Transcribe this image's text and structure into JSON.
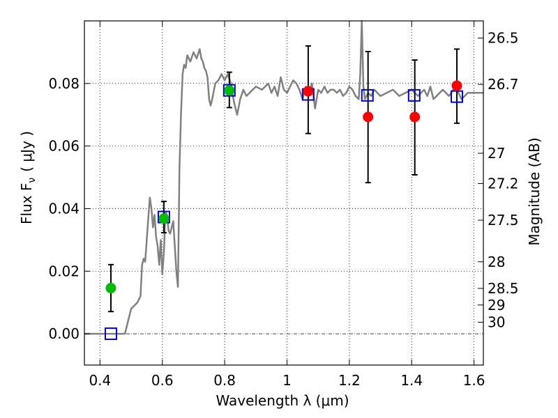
{
  "chart_data": {
    "type": "scatter",
    "title": "",
    "xlabel": "Wavelength  λ (μm)",
    "ylabel_left": "Flux  F",
    "ylabel_left_sub": "ν",
    "ylabel_left_unit": "( μJy )",
    "ylabel_right": "Magnitude (AB)",
    "xlim": [
      0.35,
      1.63
    ],
    "ylim": [
      -0.01,
      0.1
    ],
    "grid": true,
    "x_ticks": [
      {
        "value": 0.4,
        "label": "0.4"
      },
      {
        "value": 0.6,
        "label": "0.6"
      },
      {
        "value": 0.8,
        "label": "0.8"
      },
      {
        "value": 1.0,
        "label": "1"
      },
      {
        "value": 1.2,
        "label": "1.2"
      },
      {
        "value": 1.4,
        "label": "1.4"
      },
      {
        "value": 1.6,
        "label": "1.6"
      }
    ],
    "y_ticks": [
      {
        "value": 0.0,
        "label": "0.00"
      },
      {
        "value": 0.02,
        "label": "0.02"
      },
      {
        "value": 0.04,
        "label": "0.04"
      },
      {
        "value": 0.06,
        "label": "0.06"
      },
      {
        "value": 0.08,
        "label": "0.08"
      }
    ],
    "magnitude_ticks": [
      {
        "value": 0.0945,
        "label": "26.5"
      },
      {
        "value": 0.0797,
        "label": "26.7"
      },
      {
        "value": 0.0577,
        "label": "27"
      },
      {
        "value": 0.048,
        "label": "27.2"
      },
      {
        "value": 0.0363,
        "label": "27.5"
      },
      {
        "value": 0.023,
        "label": "28"
      },
      {
        "value": 0.0145,
        "label": "28.5"
      },
      {
        "value": 0.0092,
        "label": "29"
      },
      {
        "value": 0.0037,
        "label": "30"
      }
    ],
    "colors": {
      "spectrum": "#808080",
      "green_points": "#00bb00",
      "red_points": "#ff0000",
      "model_squares": "#0000cc",
      "error_bars": "#000000",
      "grid": "#000000"
    },
    "series": [
      {
        "name": "model spectrum",
        "kind": "line",
        "x": [
          0.35,
          0.48,
          0.5,
          0.52,
          0.53,
          0.535,
          0.54,
          0.545,
          0.55,
          0.555,
          0.56,
          0.565,
          0.57,
          0.575,
          0.58,
          0.585,
          0.59,
          0.595,
          0.6,
          0.605,
          0.61,
          0.615,
          0.62,
          0.625,
          0.63,
          0.635,
          0.64,
          0.645,
          0.65,
          0.655,
          0.66,
          0.665,
          0.67,
          0.675,
          0.68,
          0.69,
          0.7,
          0.71,
          0.72,
          0.725,
          0.73,
          0.735,
          0.74,
          0.745,
          0.75,
          0.755,
          0.76,
          0.77,
          0.78,
          0.79,
          0.8,
          0.81,
          0.82,
          0.83,
          0.84,
          0.85,
          0.86,
          0.87,
          0.88,
          0.9,
          0.92,
          0.94,
          0.95,
          0.96,
          0.97,
          0.98,
          0.99,
          1.0,
          1.01,
          1.02,
          1.03,
          1.04,
          1.05,
          1.06,
          1.07,
          1.08,
          1.09,
          1.1,
          1.11,
          1.12,
          1.13,
          1.14,
          1.15,
          1.16,
          1.17,
          1.18,
          1.19,
          1.2,
          1.21,
          1.22,
          1.23,
          1.235,
          1.24,
          1.245,
          1.25,
          1.26,
          1.27,
          1.28,
          1.3,
          1.32,
          1.34,
          1.36,
          1.38,
          1.4,
          1.42,
          1.44,
          1.45,
          1.46,
          1.47,
          1.48,
          1.49,
          1.5,
          1.52,
          1.54,
          1.56,
          1.58,
          1.6,
          1.63
        ],
        "y": [
          0.0,
          0.0,
          0.008,
          0.01,
          0.012,
          0.022,
          0.024,
          0.023,
          0.03,
          0.037,
          0.0435,
          0.04,
          0.034,
          0.038,
          0.031,
          0.028,
          0.022,
          0.03,
          0.019,
          0.026,
          0.039,
          0.038,
          0.033,
          0.032,
          0.034,
          0.036,
          0.028,
          0.02,
          0.015,
          0.053,
          0.07,
          0.083,
          0.086,
          0.085,
          0.089,
          0.087,
          0.09,
          0.088,
          0.091,
          0.088,
          0.087,
          0.085,
          0.084,
          0.082,
          0.075,
          0.073,
          0.075,
          0.08,
          0.081,
          0.083,
          0.081,
          0.083,
          0.08,
          0.074,
          0.07,
          0.075,
          0.078,
          0.076,
          0.077,
          0.079,
          0.078,
          0.08,
          0.077,
          0.079,
          0.076,
          0.082,
          0.078,
          0.077,
          0.079,
          0.081,
          0.08,
          0.078,
          0.075,
          0.079,
          0.077,
          0.08,
          0.072,
          0.078,
          0.077,
          0.079,
          0.077,
          0.078,
          0.078,
          0.077,
          0.078,
          0.076,
          0.077,
          0.079,
          0.078,
          0.076,
          0.075,
          0.083,
          0.104,
          0.079,
          0.075,
          0.077,
          0.076,
          0.078,
          0.076,
          0.077,
          0.078,
          0.076,
          0.077,
          0.078,
          0.076,
          0.078,
          0.076,
          0.079,
          0.075,
          0.076,
          0.077,
          0.078,
          0.076,
          0.079,
          0.075,
          0.077,
          0.077,
          0.077
        ]
      },
      {
        "name": "green detections",
        "kind": "points",
        "x": [
          0.435,
          0.605,
          0.815
        ],
        "y": [
          0.0146,
          0.0368,
          0.0778
        ],
        "err_low": [
          0.0075,
          0.0045,
          0.0055
        ],
        "err_high": [
          0.0075,
          0.0055,
          0.0058
        ]
      },
      {
        "name": "red detections",
        "kind": "points",
        "x": [
          1.068,
          1.26,
          1.41,
          1.545
        ],
        "y": [
          0.0775,
          0.0693,
          0.0693,
          0.0793
        ],
        "err_low": [
          0.0135,
          0.021,
          0.0185,
          0.012
        ],
        "err_high": [
          0.0145,
          0.0209,
          0.0182,
          0.0117
        ]
      },
      {
        "name": "model photometry",
        "kind": "squares",
        "x": [
          0.435,
          0.605,
          0.815,
          1.068,
          1.258,
          1.408,
          1.545
        ],
        "y": [
          0.0,
          0.0373,
          0.0778,
          0.0765,
          0.0762,
          0.0762,
          0.0758
        ]
      }
    ]
  }
}
